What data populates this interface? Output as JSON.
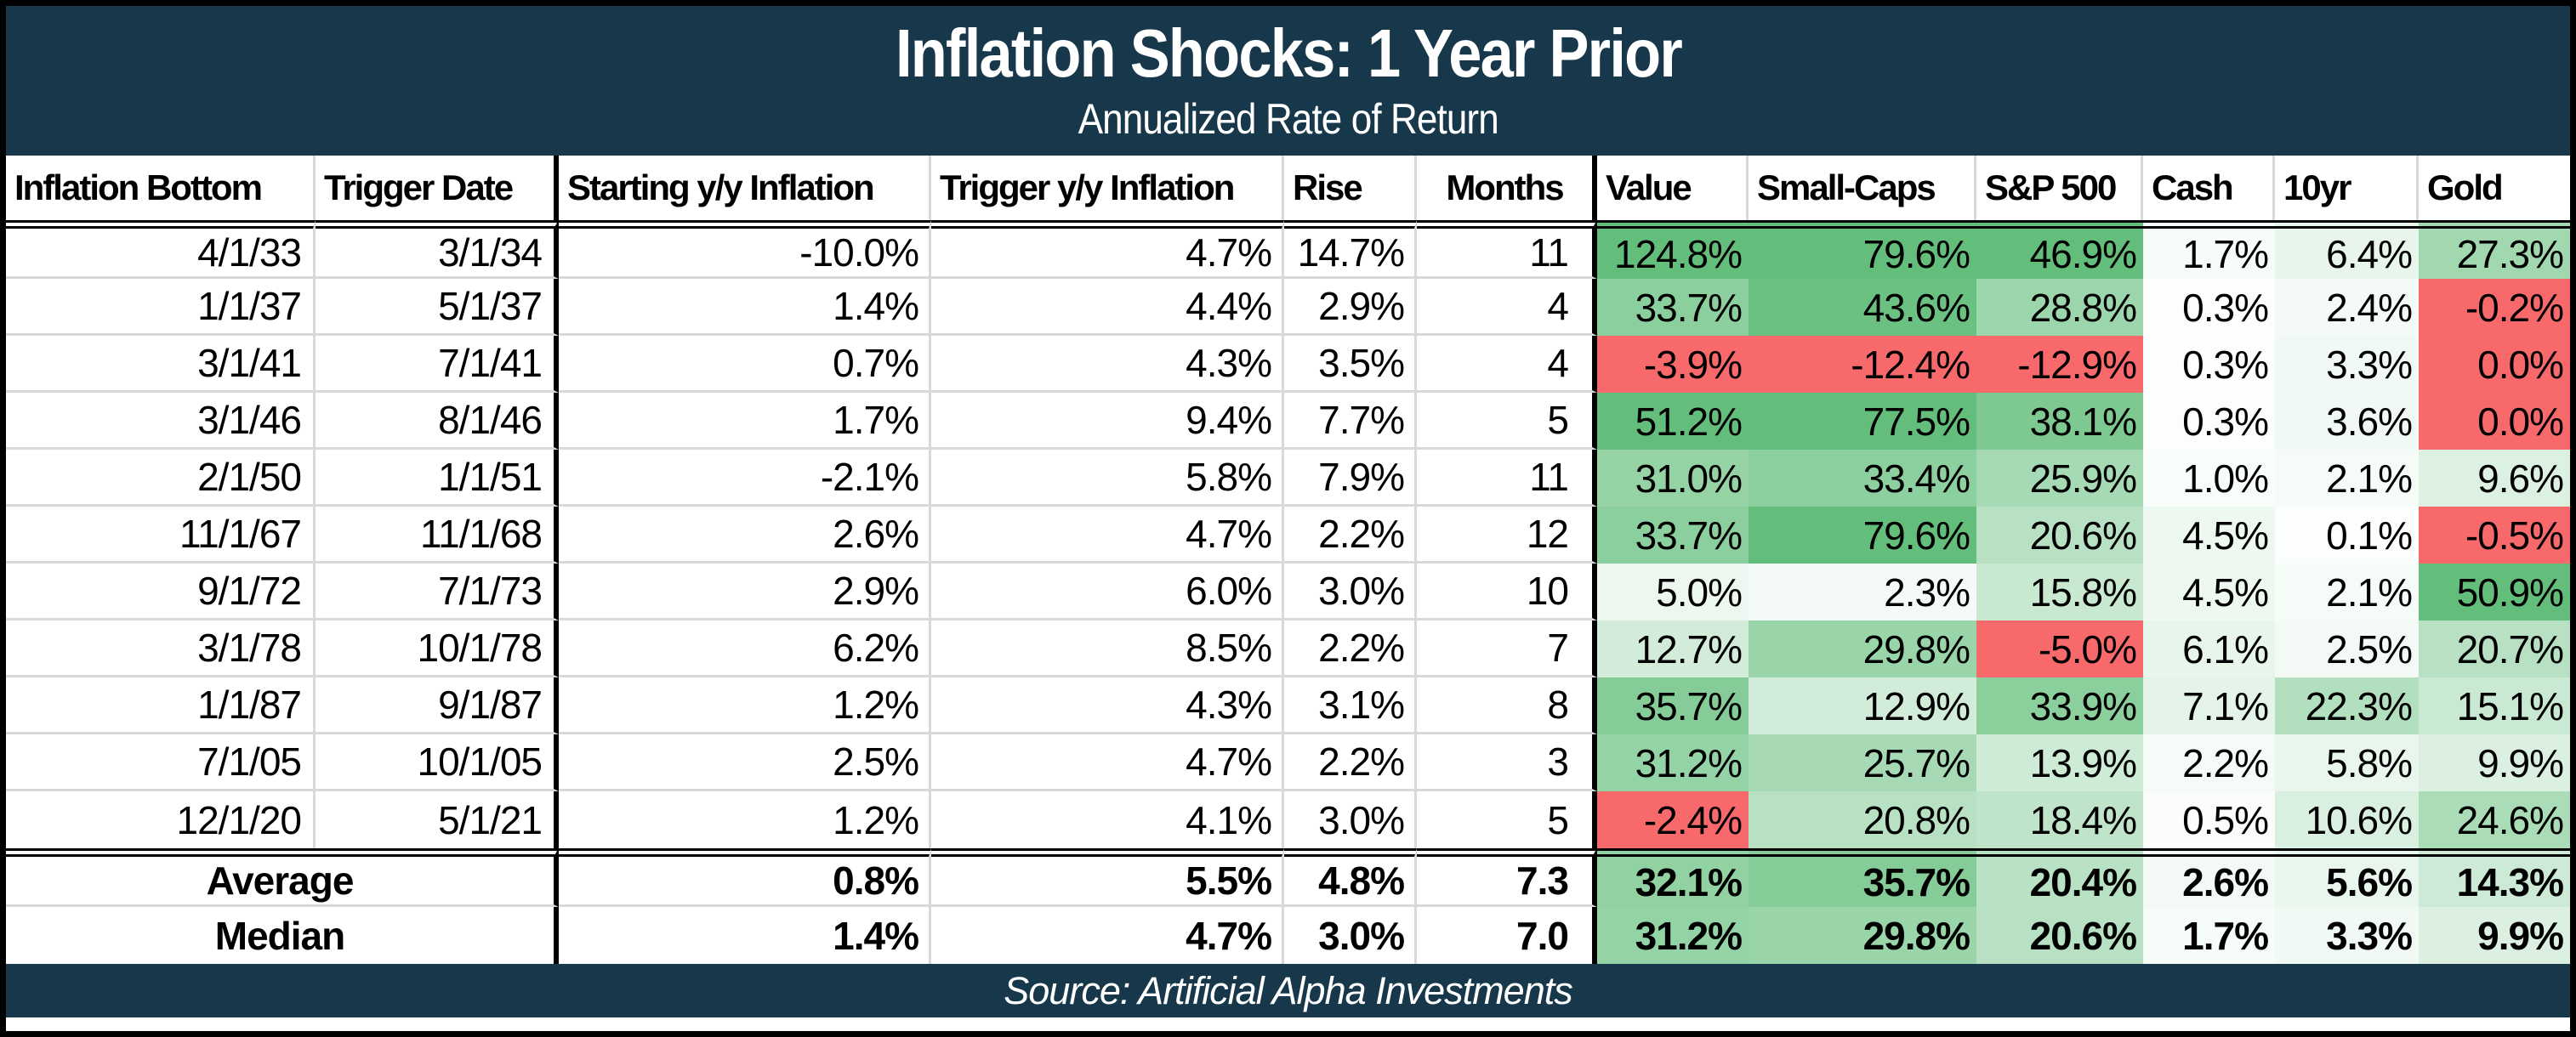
{
  "title": "Inflation Shocks: 1 Year Prior",
  "subtitle": "Annualized Rate of Return",
  "source": "Source: Artificial Alpha Investments",
  "colors": {
    "banner_bg": "#17384A",
    "banner_text": "#FFFFFF",
    "gridline": "#D9D9D9",
    "positive_max_green": "#63BE7B",
    "negative_red": "#F8696B",
    "cell_text": "#000000"
  },
  "chart_data": {
    "type": "table",
    "title": "Inflation Shocks: 1 Year Prior",
    "subtitle": "Annualized Rate of Return",
    "columns": [
      "Inflation Bottom",
      "Trigger Date",
      "Starting y/y Inflation",
      "Trigger y/y Inflation",
      "Rise",
      "Months",
      "Value",
      "Small-Caps",
      "S&P 500",
      "Cash",
      "10yr",
      "Gold"
    ],
    "rows": [
      {
        "cells": [
          "4/1/33",
          "3/1/34",
          "-10.0%",
          "4.7%",
          "14.7%",
          "11"
        ],
        "returns": [
          {
            "v": "124.8%",
            "bg": "#63BE7B"
          },
          {
            "v": "79.6%",
            "bg": "#63BE7B"
          },
          {
            "v": "46.9%",
            "bg": "#63BE7B"
          },
          {
            "v": "1.7%",
            "bg": "#F6FCF8"
          },
          {
            "v": "6.4%",
            "bg": "#E7F5EB"
          },
          {
            "v": "27.3%",
            "bg": "#A1D8B0"
          }
        ]
      },
      {
        "cells": [
          "1/1/37",
          "5/1/37",
          "1.4%",
          "4.4%",
          "2.9%",
          "4"
        ],
        "returns": [
          {
            "v": "33.7%",
            "bg": "#8CCF9E"
          },
          {
            "v": "43.6%",
            "bg": "#6BC182"
          },
          {
            "v": "28.8%",
            "bg": "#9CD6AC"
          },
          {
            "v": "0.3%",
            "bg": "#FBFEFC"
          },
          {
            "v": "2.4%",
            "bg": "#F4FAF6"
          },
          {
            "v": "-0.2%",
            "bg": "#F8696B"
          }
        ]
      },
      {
        "cells": [
          "3/1/41",
          "7/1/41",
          "0.7%",
          "4.3%",
          "3.5%",
          "4"
        ],
        "returns": [
          {
            "v": "-3.9%",
            "bg": "#F8696B"
          },
          {
            "v": "-12.4%",
            "bg": "#F8696B"
          },
          {
            "v": "-12.9%",
            "bg": "#F8696B"
          },
          {
            "v": "0.3%",
            "bg": "#FBFEFC"
          },
          {
            "v": "3.3%",
            "bg": "#F1F9F4"
          },
          {
            "v": "0.0%",
            "bg": "#F8696B"
          }
        ]
      },
      {
        "cells": [
          "3/1/46",
          "8/1/46",
          "1.7%",
          "9.4%",
          "7.7%",
          "5"
        ],
        "returns": [
          {
            "v": "51.2%",
            "bg": "#63BE7B"
          },
          {
            "v": "77.5%",
            "bg": "#63BE7B"
          },
          {
            "v": "38.1%",
            "bg": "#7DC991"
          },
          {
            "v": "0.3%",
            "bg": "#FBFEFC"
          },
          {
            "v": "3.6%",
            "bg": "#F0F9F3"
          },
          {
            "v": "0.0%",
            "bg": "#F8696B"
          }
        ]
      },
      {
        "cells": [
          "2/1/50",
          "1/1/51",
          "-2.1%",
          "5.8%",
          "7.9%",
          "11"
        ],
        "returns": [
          {
            "v": "31.0%",
            "bg": "#95D3A5"
          },
          {
            "v": "33.4%",
            "bg": "#8DD09F"
          },
          {
            "v": "25.9%",
            "bg": "#A6DAB4"
          },
          {
            "v": "1.0%",
            "bg": "#F9FDFA"
          },
          {
            "v": "2.1%",
            "bg": "#F5FBF7"
          },
          {
            "v": "9.6%",
            "bg": "#DCF1E2"
          }
        ]
      },
      {
        "cells": [
          "11/1/67",
          "11/1/68",
          "2.6%",
          "4.7%",
          "2.2%",
          "12"
        ],
        "returns": [
          {
            "v": "33.7%",
            "bg": "#8CCF9E"
          },
          {
            "v": "79.6%",
            "bg": "#63BE7B"
          },
          {
            "v": "20.6%",
            "bg": "#B7E1C2"
          },
          {
            "v": "4.5%",
            "bg": "#EDF8F0"
          },
          {
            "v": "0.1%",
            "bg": "#FCFEFD"
          },
          {
            "v": "-0.5%",
            "bg": "#F8696B"
          }
        ]
      },
      {
        "cells": [
          "9/1/72",
          "7/1/73",
          "2.9%",
          "6.0%",
          "3.0%",
          "10"
        ],
        "returns": [
          {
            "v": "5.0%",
            "bg": "#EBF7EF"
          },
          {
            "v": "2.3%",
            "bg": "#F4FAF7"
          },
          {
            "v": "15.8%",
            "bg": "#C8E8D0"
          },
          {
            "v": "4.5%",
            "bg": "#EDF8F0"
          },
          {
            "v": "2.1%",
            "bg": "#F5FBF7"
          },
          {
            "v": "50.9%",
            "bg": "#63BE7B"
          }
        ]
      },
      {
        "cells": [
          "3/1/78",
          "10/1/78",
          "6.2%",
          "8.5%",
          "2.2%",
          "7"
        ],
        "returns": [
          {
            "v": "12.7%",
            "bg": "#D2ECD9"
          },
          {
            "v": "29.8%",
            "bg": "#99D5A9"
          },
          {
            "v": "-5.0%",
            "bg": "#F8696B"
          },
          {
            "v": "6.1%",
            "bg": "#E8F5EB"
          },
          {
            "v": "2.5%",
            "bg": "#F3FAF6"
          },
          {
            "v": "20.7%",
            "bg": "#B7E1C2"
          }
        ]
      },
      {
        "cells": [
          "1/1/87",
          "9/1/87",
          "1.2%",
          "4.3%",
          "3.1%",
          "8"
        ],
        "returns": [
          {
            "v": "35.7%",
            "bg": "#85CC98"
          },
          {
            "v": "12.9%",
            "bg": "#D1ECD9"
          },
          {
            "v": "33.9%",
            "bg": "#8BCF9D"
          },
          {
            "v": "7.1%",
            "bg": "#E4F4E9"
          },
          {
            "v": "22.3%",
            "bg": "#B2DFBE"
          },
          {
            "v": "15.1%",
            "bg": "#CAE9D2"
          }
        ]
      },
      {
        "cells": [
          "7/1/05",
          "10/1/05",
          "2.5%",
          "4.7%",
          "2.2%",
          "3"
        ],
        "returns": [
          {
            "v": "31.2%",
            "bg": "#94D3A5"
          },
          {
            "v": "25.7%",
            "bg": "#A7DAB4"
          },
          {
            "v": "13.9%",
            "bg": "#CEEBD6"
          },
          {
            "v": "2.2%",
            "bg": "#F5FBF7"
          },
          {
            "v": "5.8%",
            "bg": "#E9F6ED"
          },
          {
            "v": "9.9%",
            "bg": "#DBF0E1"
          }
        ]
      },
      {
        "cells": [
          "12/1/20",
          "5/1/21",
          "1.2%",
          "4.1%",
          "3.0%",
          "5"
        ],
        "returns": [
          {
            "v": "-2.4%",
            "bg": "#F8696B"
          },
          {
            "v": "20.8%",
            "bg": "#B7E1C2"
          },
          {
            "v": "18.4%",
            "bg": "#BFE4C9"
          },
          {
            "v": "0.5%",
            "bg": "#FAFDFB"
          },
          {
            "v": "10.6%",
            "bg": "#D9EFDF"
          },
          {
            "v": "24.6%",
            "bg": "#AADCB7"
          }
        ]
      }
    ],
    "summary": [
      {
        "label": "Average",
        "cells": [
          "0.8%",
          "5.5%",
          "4.8%",
          "7.3"
        ],
        "returns": [
          {
            "v": "32.1%",
            "bg": "#91D1A2"
          },
          {
            "v": "35.7%",
            "bg": "#85CC98"
          },
          {
            "v": "20.4%",
            "bg": "#B8E2C3"
          },
          {
            "v": "2.6%",
            "bg": "#F3FAF6"
          },
          {
            "v": "5.6%",
            "bg": "#E9F6ED"
          },
          {
            "v": "14.3%",
            "bg": "#CCEAD5"
          }
        ]
      },
      {
        "label": "Median",
        "cells": [
          "1.4%",
          "4.7%",
          "3.0%",
          "7.0"
        ],
        "returns": [
          {
            "v": "31.2%",
            "bg": "#94D3A5"
          },
          {
            "v": "29.8%",
            "bg": "#99D5A9"
          },
          {
            "v": "20.6%",
            "bg": "#B7E1C2"
          },
          {
            "v": "1.7%",
            "bg": "#F6FCF8"
          },
          {
            "v": "3.3%",
            "bg": "#F1F9F4"
          },
          {
            "v": "9.9%",
            "bg": "#DBF0E1"
          }
        ]
      }
    ]
  }
}
